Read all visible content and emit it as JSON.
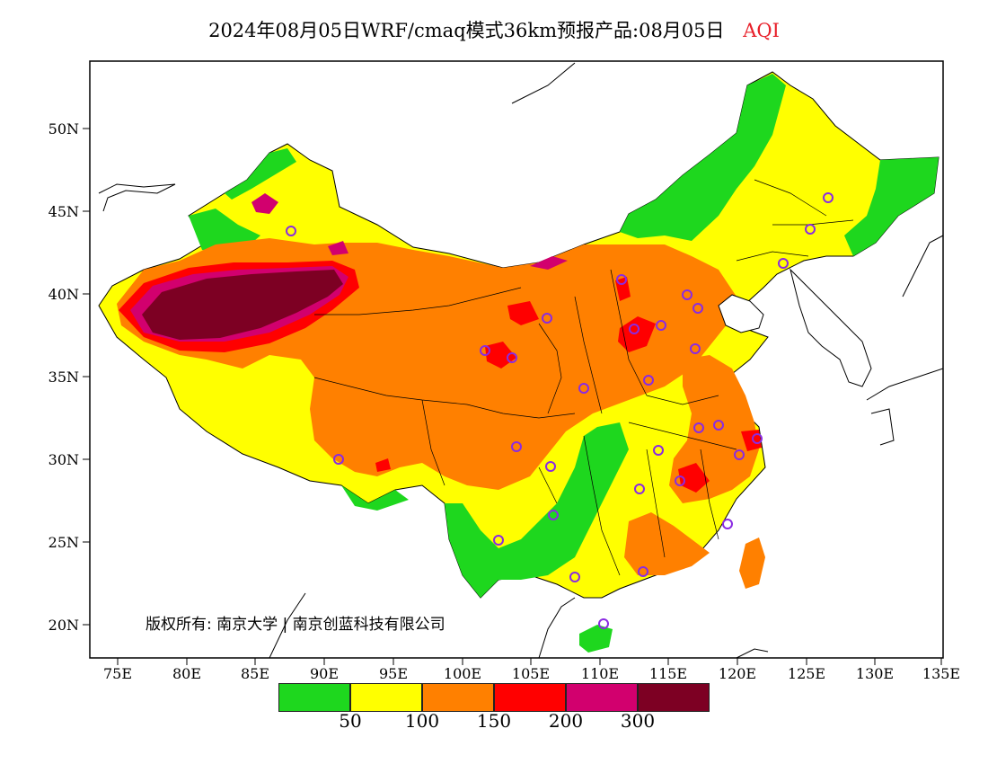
{
  "header": {
    "title": "2024年08月05日WRF/cmaq模式36km预报产品:08月05日",
    "variable": "AQI"
  },
  "axes": {
    "lat_ticks": [
      "50N",
      "45N",
      "40N",
      "35N",
      "30N",
      "25N",
      "20N"
    ],
    "lon_ticks": [
      "75E",
      "80E",
      "85E",
      "90E",
      "95E",
      "100E",
      "105E",
      "110E",
      "115E",
      "120E",
      "125E",
      "130E",
      "135E"
    ]
  },
  "legend": {
    "colors": [
      "#1ed71e",
      "#ffff00",
      "#ff8000",
      "#ff0000",
      "#d2006e",
      "#7d0023"
    ],
    "labels": [
      "50",
      "100",
      "150",
      "200",
      "300"
    ]
  },
  "copyright": "版权所有: 南京大学 | 南京创蓝科技有限公司"
}
